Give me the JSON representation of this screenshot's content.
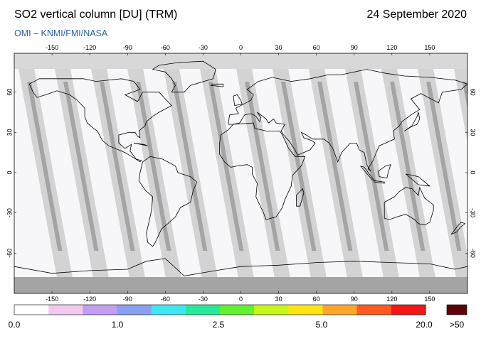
{
  "header": {
    "title": "SO2 vertical column [DU] (TRM)",
    "date": "24 September 2020",
    "credit": "OMI  –  KNMI/FMI/NASA"
  },
  "map": {
    "projection": "equirectangular",
    "lon_ticks": [
      "-150",
      "-120",
      "-90",
      "-60",
      "-30",
      "0",
      "30",
      "60",
      "90",
      "120",
      "150"
    ],
    "lat_ticks": [
      "60",
      "30",
      "0",
      "-30",
      "-60"
    ],
    "swath_color": "#d3d3d3",
    "overlap_color": "#a4a4a4",
    "coast_color": "#000000",
    "background_color": "#f7f6f9"
  },
  "colorbar": {
    "labels": [
      "0.0",
      "1.0",
      "2.5",
      "5.0",
      "20.0",
      ">50"
    ],
    "colors": [
      "#ffffff",
      "#f2c8ef",
      "#c39ef0",
      "#8aa0f0",
      "#3ee8f2",
      "#25ea9a",
      "#62f130",
      "#c4f61a",
      "#ffe414",
      "#ffa62a",
      "#ff5a21",
      "#f21616"
    ],
    "overflow_color": "#5c0505"
  }
}
